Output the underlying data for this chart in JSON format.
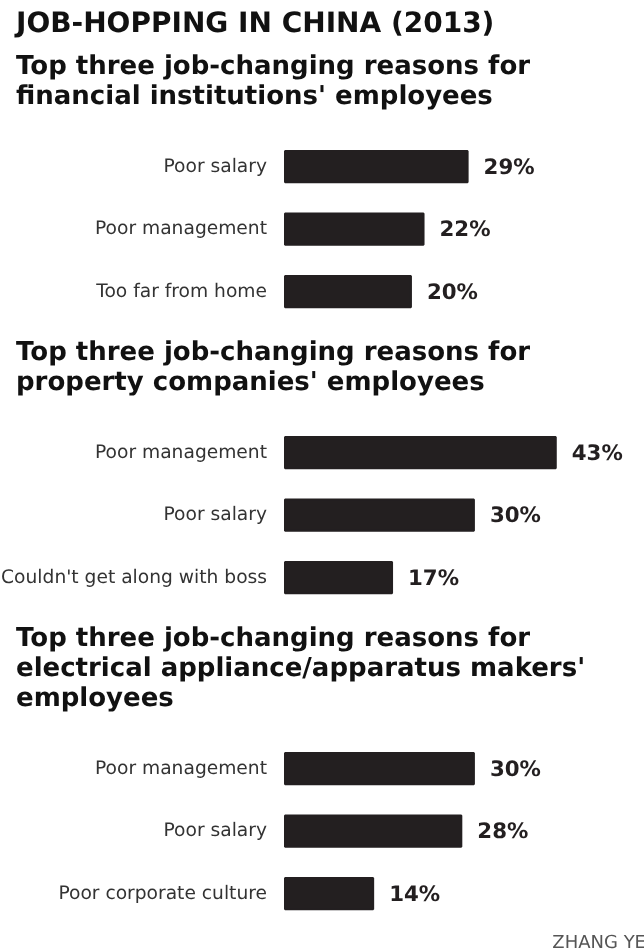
{
  "chart_data": [
    {
      "type": "bar",
      "orientation": "horizontal",
      "title": "JOB-HOPPING IN CHINA (2013)",
      "subtitle": "Top three job-changing reasons for financial institutions' employees",
      "categories": [
        "Poor salary",
        "Poor management",
        "Too far from home"
      ],
      "values": [
        29,
        22,
        20
      ],
      "value_labels": [
        "29%",
        "22%",
        "20%"
      ],
      "color": "#231f20"
    },
    {
      "type": "bar",
      "orientation": "horizontal",
      "title": "Top three job-changing reasons for property companies' employees",
      "categories": [
        "Poor management",
        "Poor salary",
        "Couldn't get along with boss"
      ],
      "values": [
        43,
        30,
        17
      ],
      "value_labels": [
        "43%",
        "30%",
        "17%"
      ],
      "color": "#231f20"
    },
    {
      "type": "bar",
      "orientation": "horizontal",
      "title": "Top three job-changing reasons for electrical appliance/apparatus makers' employees",
      "categories": [
        "Poor management",
        "Poor salary",
        "Poor corporate culture"
      ],
      "values": [
        30,
        28,
        14
      ],
      "value_labels": [
        "30%",
        "28%",
        "14%"
      ],
      "color": "#231f20",
      "annotations": [
        "ZHANG YE"
      ]
    }
  ]
}
